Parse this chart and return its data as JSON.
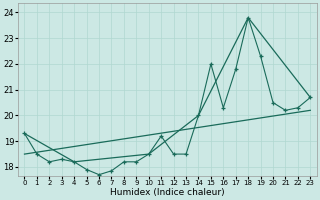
{
  "xlabel": "Humidex (Indice chaleur)",
  "bg_color": "#cce8e4",
  "line_color": "#1a6b5a",
  "grid_color": "#b0d8d0",
  "xlim": [
    -0.5,
    23.5
  ],
  "ylim": [
    17.65,
    24.35
  ],
  "yticks": [
    18,
    19,
    20,
    21,
    22,
    23,
    24
  ],
  "xticks": [
    0,
    1,
    2,
    3,
    4,
    5,
    6,
    7,
    8,
    9,
    10,
    11,
    12,
    13,
    14,
    15,
    16,
    17,
    18,
    19,
    20,
    21,
    22,
    23
  ],
  "series1_x": [
    0,
    1,
    2,
    3,
    4,
    5,
    6,
    7,
    8,
    9,
    10,
    11,
    12,
    13,
    14,
    15,
    16,
    17,
    18,
    19,
    20,
    21,
    22,
    23
  ],
  "series1_y": [
    19.3,
    18.5,
    18.2,
    18.3,
    18.2,
    17.9,
    17.7,
    17.85,
    18.2,
    18.2,
    18.5,
    19.2,
    18.5,
    18.5,
    20.0,
    22.0,
    20.3,
    21.8,
    23.8,
    22.3,
    20.5,
    20.2,
    20.3,
    20.7
  ],
  "series2_x": [
    0,
    4,
    10,
    14,
    18,
    23
  ],
  "series2_y": [
    19.3,
    18.2,
    18.5,
    20.0,
    23.8,
    20.7
  ],
  "series3_x": [
    0,
    23
  ],
  "series3_y": [
    18.5,
    20.2
  ]
}
